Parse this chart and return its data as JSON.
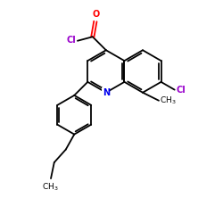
{
  "background_color": "#ffffff",
  "atom_colors": {
    "N": "#0000ee",
    "O": "#ff0000",
    "Cl": "#9900cc"
  },
  "bond_color": "#000000",
  "lw": 1.3,
  "figsize": [
    2.5,
    2.5
  ],
  "dpi": 100,
  "xlim": [
    0,
    10
  ],
  "ylim": [
    0,
    10
  ],
  "sl": 0.95
}
